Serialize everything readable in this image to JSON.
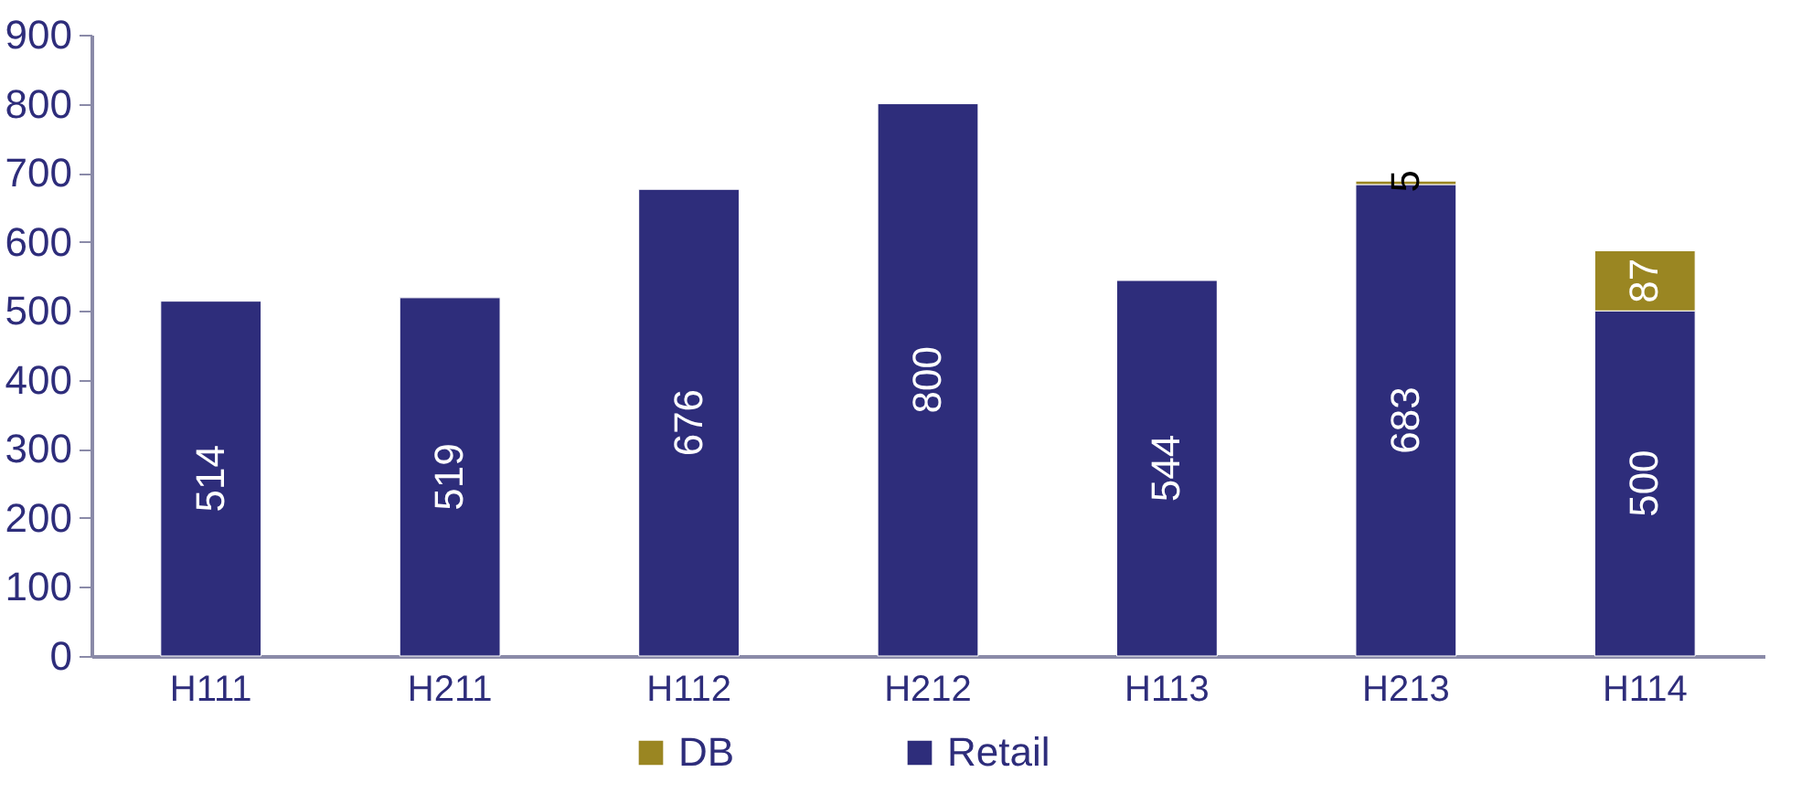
{
  "chart_data": {
    "type": "bar",
    "stacked": true,
    "categories": [
      "H111",
      "H211",
      "H112",
      "H212",
      "H113",
      "H213",
      "H114"
    ],
    "series": [
      {
        "name": "Retail",
        "color": "#2e2d7b",
        "values": [
          514,
          519,
          676,
          800,
          544,
          683,
          500
        ]
      },
      {
        "name": "DB",
        "color": "#9a8622",
        "values": [
          null,
          null,
          null,
          null,
          null,
          5,
          87
        ]
      }
    ],
    "ylim": [
      0,
      900
    ],
    "yticks": [
      0,
      100,
      200,
      300,
      400,
      500,
      600,
      700,
      800,
      900
    ],
    "grid": false,
    "legend": "bottom",
    "data_labels": true
  }
}
